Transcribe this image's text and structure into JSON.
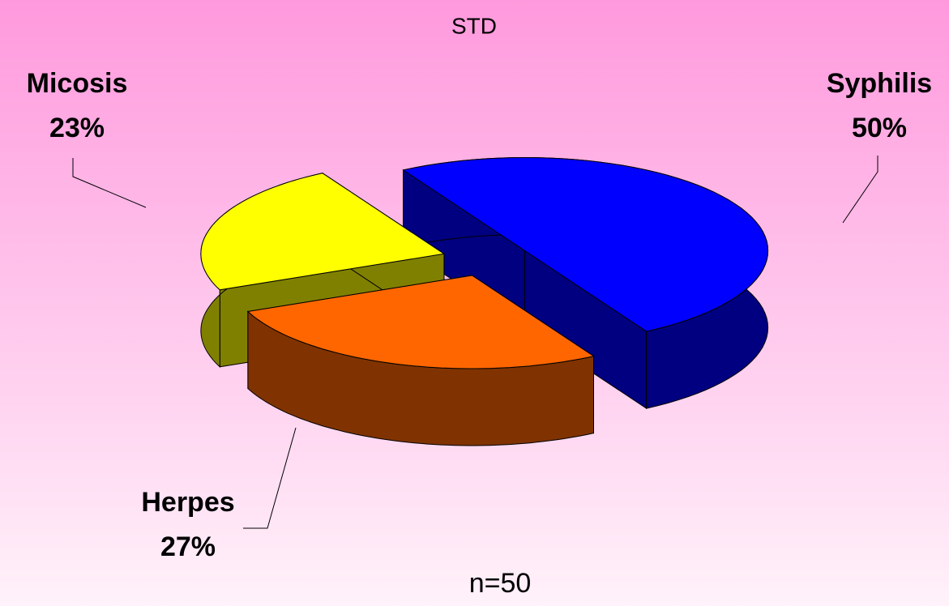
{
  "chart_data": {
    "type": "pie",
    "title": "STD",
    "categories": [
      "Syphilis",
      "Herpes",
      "Micosis"
    ],
    "values": [
      50,
      27,
      23
    ],
    "value_labels": [
      "50%",
      "27%",
      "23%"
    ],
    "colors": [
      "#0000ff",
      "#ff6600",
      "#ffff00"
    ],
    "annotation": "n=50"
  }
}
